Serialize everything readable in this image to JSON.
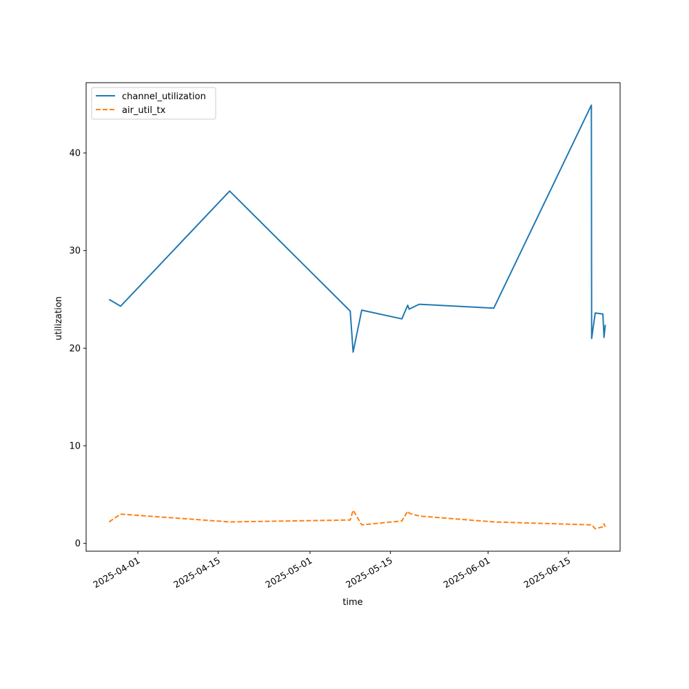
{
  "chart_data": {
    "type": "line",
    "title": "",
    "xlabel": "time",
    "ylabel": "utilization",
    "x_ticks": [
      "2025-04-01",
      "2025-04-15",
      "2025-05-01",
      "2025-05-15",
      "2025-06-01",
      "2025-06-15"
    ],
    "y_ticks": [
      "0",
      "10",
      "20",
      "30",
      "40"
    ],
    "xlim": [
      "2025-03-23",
      "2025-06-24"
    ],
    "ylim": [
      -0.8,
      47.2
    ],
    "grid": false,
    "legend_position": "upper-left",
    "series": [
      {
        "name": "channel_utilization",
        "color": "#1f77b4",
        "style": "solid",
        "points": [
          [
            "2025-03-27",
            25.0
          ],
          [
            "2025-03-29",
            24.3
          ],
          [
            "2025-04-17",
            36.1
          ],
          [
            "2025-05-08",
            23.8
          ],
          [
            "2025-05-08T12:00",
            19.6
          ],
          [
            "2025-05-10",
            23.9
          ],
          [
            "2025-05-17",
            23.0
          ],
          [
            "2025-05-18",
            24.4
          ],
          [
            "2025-05-18T06:00",
            24.0
          ],
          [
            "2025-05-20",
            24.5
          ],
          [
            "2025-06-02",
            24.1
          ],
          [
            "2025-06-19",
            44.9
          ],
          [
            "2025-06-19T01:00",
            21.0
          ],
          [
            "2025-06-19T16:00",
            23.6
          ],
          [
            "2025-06-21",
            23.5
          ],
          [
            "2025-06-21T05:00",
            21.1
          ],
          [
            "2025-06-21T10:00",
            22.4
          ]
        ]
      },
      {
        "name": "air_util_tx",
        "color": "#ff7f0e",
        "style": "dashed",
        "points": [
          [
            "2025-03-27",
            2.2
          ],
          [
            "2025-03-29",
            3.0
          ],
          [
            "2025-04-17",
            2.2
          ],
          [
            "2025-05-08",
            2.4
          ],
          [
            "2025-05-08T12:00",
            3.4
          ],
          [
            "2025-05-10",
            1.9
          ],
          [
            "2025-05-17",
            2.3
          ],
          [
            "2025-05-18",
            3.3
          ],
          [
            "2025-05-18T06:00",
            3.1
          ],
          [
            "2025-05-20",
            2.8
          ],
          [
            "2025-06-02",
            2.2
          ],
          [
            "2025-06-19",
            1.9
          ],
          [
            "2025-06-19T01:00",
            1.9
          ],
          [
            "2025-06-19T16:00",
            1.5
          ],
          [
            "2025-06-21",
            1.7
          ],
          [
            "2025-06-21T05:00",
            2.0
          ],
          [
            "2025-06-21T10:00",
            1.7
          ]
        ]
      }
    ]
  }
}
